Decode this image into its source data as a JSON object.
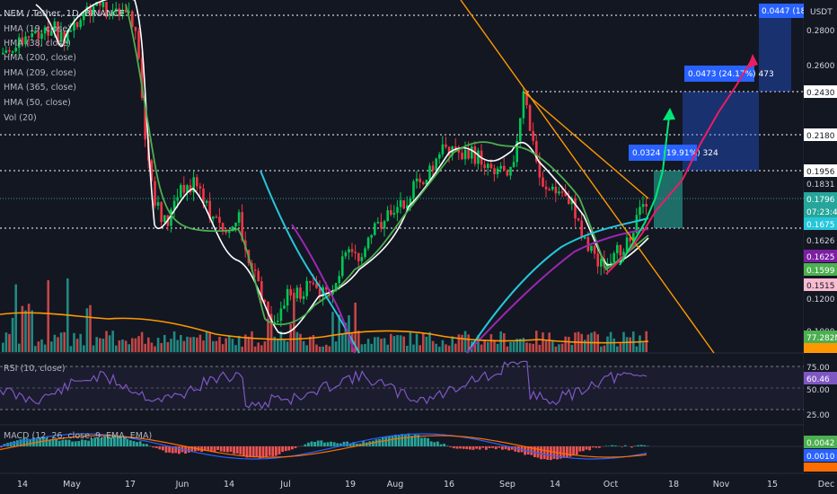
{
  "symbol_title": "NEM / Tether, 1D, BINANCE",
  "quote_unit": "USDT",
  "indicators": [
    "HMA (19, close)",
    "HMA (38, close)",
    "HMA (200, close)",
    "HMA (209, close)",
    "HMA (365, close)",
    "HMA (50, close)",
    "Vol (20)"
  ],
  "rsi_label": "RSI (10, close)",
  "macd_label": "MACD (12, 26, close, 9, EMA, EMA)",
  "price_axis": [
    "0.2800",
    "0.2600",
    "0.2430",
    "0.2180",
    "0.1956",
    "0.1831",
    "0.1200",
    "0.1000"
  ],
  "price_tags": [
    {
      "text": "0.1796",
      "bg": "#26a69a",
      "fg": "#ffffff"
    },
    {
      "text": "07:23:46",
      "bg": "#26a69a",
      "fg": "#ffffff"
    },
    {
      "text": "0.1675",
      "bg": "#26c6da",
      "fg": "#ffffff"
    },
    {
      "text": "0.1626",
      "bg": "#131722",
      "fg": "#d1d4dc"
    },
    {
      "text": "0.1625",
      "bg": "#7b1fa2",
      "fg": "#ffffff"
    },
    {
      "text": "0.1599",
      "bg": "#4caf50",
      "fg": "#ffffff"
    },
    {
      "text": "0.1515",
      "bg": "#f8bbd0",
      "fg": "#131722"
    }
  ],
  "volume_tag": {
    "text": "77.282M",
    "bg": "#4caf50"
  },
  "rsi_axis": [
    "75.00",
    "50.00",
    "25.00"
  ],
  "rsi_tag": {
    "text": "60.46",
    "bg": "#7e57c2"
  },
  "macd_tags": [
    {
      "text": "0.0042",
      "bg": "#4caf50"
    },
    {
      "text": "0.0010",
      "bg": "#2962ff"
    }
  ],
  "time_axis": [
    "14",
    "May",
    "17",
    "Jun",
    "14",
    "Jul",
    "19",
    "Aug",
    "16",
    "Sep",
    "14",
    "Oct",
    "18",
    "Nov",
    "15",
    "Dec"
  ],
  "measure_labels": [
    "0.0447 (18.2",
    "0.0473 (24.17%) 473",
    "0.0324 (19.91%) 324"
  ],
  "colors": {
    "background": "#131722",
    "up_candle": "#26a69a",
    "up_candle_bright": "#00c853",
    "down_candle": "#f23645",
    "hma_white": "#ffffff",
    "hma_green": "#4caf50",
    "hma_cyan": "#26c6da",
    "hma_purple": "#9c27b0",
    "hma_orange": "#ff9800",
    "trendline_orange": "#ff9800",
    "arrow_pink": "#e91e63",
    "arrow_green": "#00e676",
    "measure_blue": "#2962ff",
    "rsi_line": "#7e57c2",
    "macd_line": "#2962ff",
    "signal_line": "#ff6d00"
  }
}
